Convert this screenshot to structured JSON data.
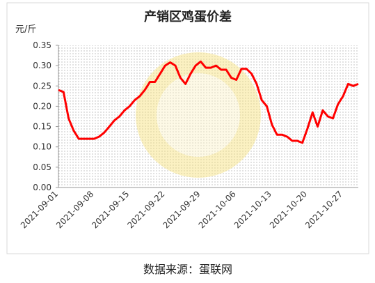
{
  "chart_data": {
    "type": "line",
    "title": "产销区鸡蛋价差",
    "y_label": "元/斤",
    "source": "数据来源：蛋联网",
    "categories": [
      "2021-09-01",
      null,
      null,
      null,
      null,
      null,
      null,
      "2021-09-08",
      null,
      null,
      null,
      null,
      null,
      null,
      "2021-09-15",
      null,
      null,
      null,
      null,
      null,
      null,
      "2021-09-22",
      null,
      null,
      null,
      null,
      null,
      null,
      "2021-09-29",
      null,
      null,
      null,
      null,
      null,
      null,
      "2021-10-06",
      null,
      null,
      null,
      null,
      null,
      null,
      "2021-10-13",
      null,
      null,
      null,
      null,
      null,
      null,
      "2021-10-20",
      null,
      null,
      null,
      null,
      null,
      null,
      "2021-10-27",
      null,
      null,
      null
    ],
    "series": [
      {
        "name": "产销区鸡蛋价差",
        "color": "#ff0000",
        "values": [
          0.24,
          0.235,
          0.17,
          0.14,
          0.12,
          0.12,
          0.12,
          0.12,
          0.125,
          0.135,
          0.15,
          0.165,
          0.175,
          0.19,
          0.2,
          0.215,
          0.225,
          0.24,
          0.26,
          0.26,
          0.28,
          0.3,
          0.308,
          0.3,
          0.27,
          0.255,
          0.28,
          0.3,
          0.31,
          0.295,
          0.295,
          0.3,
          0.29,
          0.29,
          0.27,
          0.265,
          0.292,
          0.292,
          0.28,
          0.255,
          0.215,
          0.2,
          0.155,
          0.13,
          0.13,
          0.125,
          0.115,
          0.115,
          0.11,
          0.145,
          0.185,
          0.15,
          0.19,
          0.175,
          0.17,
          0.205,
          0.225,
          0.255,
          0.25,
          0.255
        ]
      }
    ],
    "ylim": [
      0,
      0.35
    ],
    "yticks": [
      {
        "value": 0,
        "label": "0.00"
      },
      {
        "value": 0.05,
        "label": "0.05"
      },
      {
        "value": 0.1,
        "label": "0.10"
      },
      {
        "value": 0.15,
        "label": "0.15"
      },
      {
        "value": 0.2,
        "label": "0.20"
      },
      {
        "value": 0.25,
        "label": "0.25"
      },
      {
        "value": 0.3,
        "label": "0.30"
      },
      {
        "value": 0.35,
        "label": "0.35"
      }
    ]
  }
}
